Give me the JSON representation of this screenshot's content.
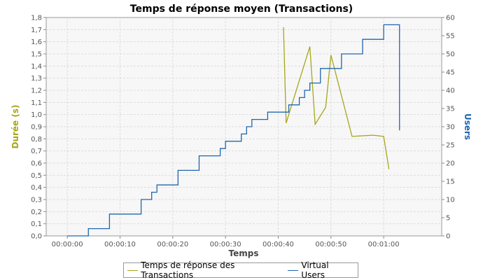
{
  "chart_data": {
    "type": "line",
    "title": "Temps de réponse moyen (Transactions)",
    "xlabel": "Temps",
    "ylabel": "Durée (s)",
    "y2label": "Users",
    "xlim": [
      -4,
      71
    ],
    "ylim": [
      0,
      1.8
    ],
    "y2lim": [
      0,
      60
    ],
    "x_ticks": [
      0,
      10,
      20,
      30,
      40,
      50,
      60
    ],
    "x_tick_labels": [
      "00:00:00",
      "00:00:10",
      "00:00:20",
      "00:00:30",
      "00:00:40",
      "00:00:50",
      "00:01:00"
    ],
    "y_ticks": [
      "0,0",
      "0,1",
      "0,2",
      "0,3",
      "0,4",
      "0,5",
      "0,6",
      "0,7",
      "0,8",
      "0,9",
      "1,0",
      "1,1",
      "1,2",
      "1,3",
      "1,4",
      "1,5",
      "1,6",
      "1,7",
      "1,8"
    ],
    "y2_ticks": [
      "0",
      "5",
      "10",
      "15",
      "20",
      "25",
      "30",
      "35",
      "40",
      "45",
      "50",
      "55",
      "60"
    ],
    "grid": true,
    "legend_position": "bottom",
    "colors": {
      "response": "#a6a61c",
      "users": "#1f66b0",
      "ylabel": "#a6a61c",
      "y2label": "#1f66b0",
      "plot_bg": "#f7f7f7",
      "grid": "#dcdcdc"
    },
    "series": [
      {
        "name": "Temps de réponse des Transactions",
        "axis": "left",
        "x": [
          41,
          41.5,
          46,
          47,
          49,
          50,
          54,
          58,
          60,
          61
        ],
        "y": [
          1.72,
          0.93,
          1.56,
          0.92,
          1.06,
          1.49,
          0.82,
          0.83,
          0.82,
          0.55
        ]
      },
      {
        "name": "Virtual Users",
        "axis": "right",
        "step": true,
        "x": [
          0,
          4,
          8,
          14,
          16,
          17,
          21,
          25,
          29,
          30,
          33,
          34,
          35,
          38,
          42,
          44,
          45,
          46,
          48,
          52,
          56,
          60,
          63,
          63
        ],
        "y": [
          0,
          2,
          6,
          10,
          12,
          14,
          18,
          22,
          24,
          26,
          28,
          30,
          32,
          34,
          36,
          38,
          40,
          42,
          46,
          50,
          54,
          58,
          58,
          29
        ]
      }
    ]
  }
}
